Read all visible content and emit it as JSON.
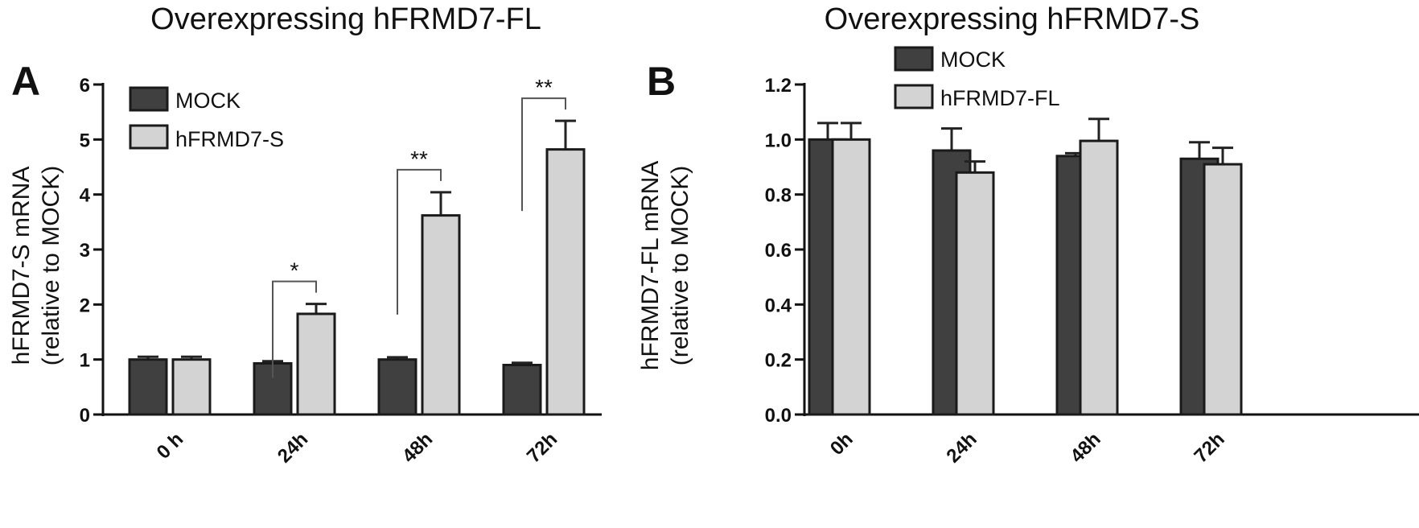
{
  "chart_data": [
    {
      "type": "bar",
      "panel_label": "A",
      "title": "Overexpressing hFRMD7-FL",
      "xlabel": "",
      "ylabel": "hFRMD7-S mRNA",
      "ylabel_sub": "(relative to MOCK)",
      "ylim": [
        0,
        6
      ],
      "yticks": [
        "0",
        "1",
        "2",
        "3",
        "4",
        "5",
        "6"
      ],
      "categories": [
        "0 h",
        "24h",
        "48h",
        "72h"
      ],
      "series": [
        {
          "name": "MOCK",
          "color": "#404040",
          "values": [
            1.0,
            0.93,
            1.0,
            0.9
          ],
          "errors": [
            0.05,
            0.04,
            0.04,
            0.04
          ]
        },
        {
          "name": "hFRMD7-S",
          "color": "#d3d3d3",
          "values": [
            1.0,
            1.83,
            3.62,
            4.82
          ],
          "errors": [
            0.05,
            0.18,
            0.42,
            0.52
          ]
        }
      ],
      "significance": [
        {
          "category": "24h",
          "label": "*"
        },
        {
          "category": "48h",
          "label": "**"
        },
        {
          "category": "72h",
          "label": "**"
        }
      ],
      "legend_position": "top-left",
      "grid": false
    },
    {
      "type": "bar",
      "panel_label": "B",
      "title": "Overexpressing hFRMD7-S",
      "xlabel": "",
      "ylabel": "hFRMD7-FL mRNA",
      "ylabel_sub": "(relative to MOCK)",
      "ylim": [
        0,
        1.2
      ],
      "yticks": [
        "0.0",
        "0.2",
        "0.4",
        "0.6",
        "0.8",
        "1.0",
        "1.2"
      ],
      "categories": [
        "0h",
        "24h",
        "48h",
        "72h"
      ],
      "series": [
        {
          "name": "MOCK",
          "color": "#404040",
          "values": [
            1.0,
            0.96,
            0.94,
            0.93
          ],
          "errors": [
            0.06,
            0.08,
            0.01,
            0.06
          ]
        },
        {
          "name": "hFRMD7-FL",
          "color": "#d3d3d3",
          "values": [
            1.0,
            0.88,
            0.995,
            0.91
          ],
          "errors": [
            0.06,
            0.04,
            0.08,
            0.06
          ]
        }
      ],
      "significance": [],
      "legend_position": "top-left",
      "grid": false
    }
  ]
}
